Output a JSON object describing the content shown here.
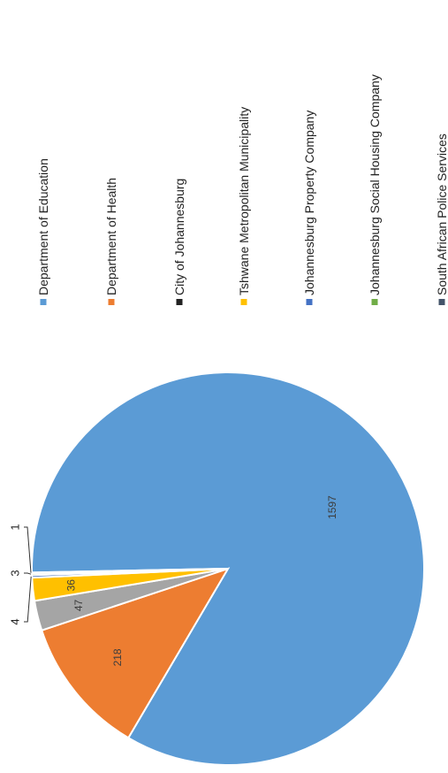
{
  "chart_data": {
    "type": "pie",
    "categories": [
      "Department of Education",
      "Department of Health",
      "City of Johannesburg",
      "Tshwane Metropolitan Municipality",
      "Johannesburg Property Company",
      "Johannesburg Social Housing Company",
      "South African Police Services"
    ],
    "values": [
      1597,
      218,
      47,
      36,
      4,
      3,
      1
    ],
    "data_labels": [
      "1597",
      "218",
      "47",
      "36",
      "4",
      "3",
      "1"
    ],
    "colors": [
      "#5b9bd5",
      "#ed7d31",
      "#a5a5a5",
      "#ffc000",
      "#4472c4",
      "#70ad47",
      "#255e91"
    ],
    "legend_markers": [
      "#5b9bd5",
      "#ed7d31",
      "#222222",
      "#ffc000",
      "#4472c4",
      "#70ad47",
      "#44546a"
    ],
    "legend_position": "right",
    "orientation": "rotated 90° counter-clockwise"
  }
}
